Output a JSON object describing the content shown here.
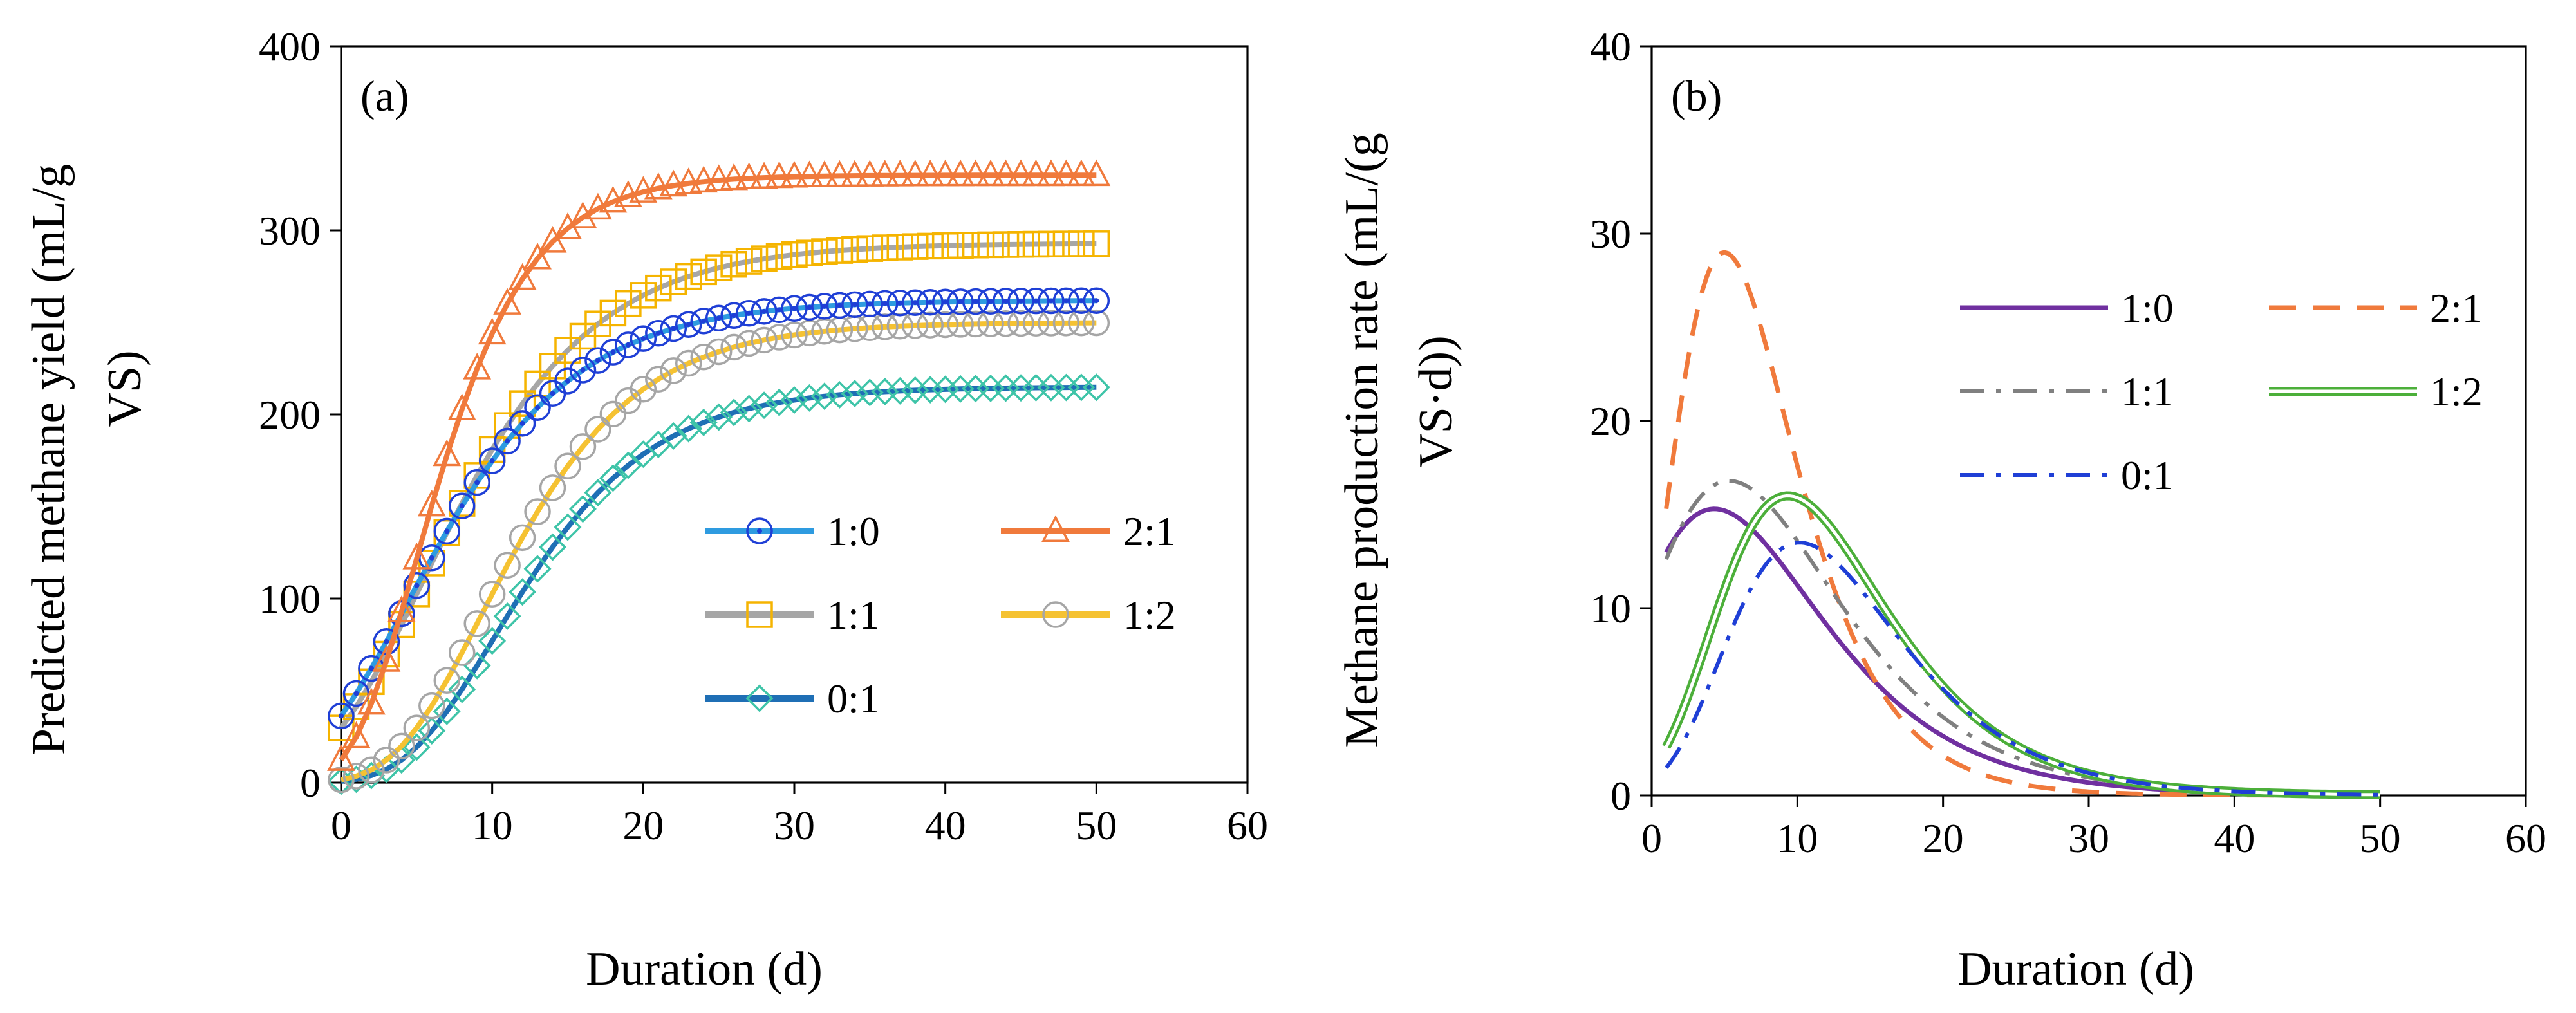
{
  "chart_data": [
    {
      "type": "line",
      "panel_label": "(a)",
      "title": "",
      "xlabel": "Duration (d)",
      "ylabel": "Predicted methane yield (mL/g VS)",
      "ylabel_lines": [
        "Predicted methane yield (mL/g",
        "VS)"
      ],
      "xlim": [
        0,
        60
      ],
      "ylim": [
        0,
        400
      ],
      "xticks": [
        0,
        10,
        20,
        30,
        40,
        50,
        60
      ],
      "yticks": [
        0,
        100,
        200,
        300,
        400
      ],
      "grid": false,
      "legend_position": "lower-right",
      "series": [
        {
          "name": "1:0",
          "color": "#1f3fd6",
          "line_color": "#2e9be0",
          "marker": "circle-dot",
          "model": {
            "P": 262,
            "Rm": 15.3,
            "lambda": -2.0,
            "kind": "gompertz"
          }
        },
        {
          "name": "2:1",
          "color": "#f07a3c",
          "line_color": "#f07a3c",
          "marker": "triangle",
          "model": {
            "P": 330,
            "Rm": 29,
            "lambda": 0.8,
            "kind": "gompertz"
          }
        },
        {
          "name": "1:1",
          "color": "#f5b400",
          "line_color": "#a6a6a6",
          "marker": "square",
          "model": {
            "P": 293,
            "Rm": 16.8,
            "lambda": -1.1,
            "kind": "gompertz"
          }
        },
        {
          "name": "1:2",
          "color": "#a6a6a6",
          "line_color": "#f5c232",
          "marker": "circle",
          "model": {
            "P": 250,
            "Rm": 16.0,
            "lambda": 3.6,
            "kind": "gompertz"
          }
        },
        {
          "name": "0:1",
          "color": "#3ec4a8",
          "line_color": "#1f6fb5",
          "marker": "diamond",
          "model": {
            "P": 215,
            "Rm": 13.5,
            "lambda": 4.3,
            "kind": "gompertz"
          }
        }
      ],
      "x_step": 1,
      "x_range": [
        0,
        50
      ]
    },
    {
      "type": "line",
      "panel_label": "(b)",
      "title": "",
      "xlabel": "Duration (d)",
      "ylabel": "Methane production rate (mL/(g VS·d))",
      "ylabel_lines": [
        "Methane production rate (mL/(g",
        "VS·d))"
      ],
      "xlim": [
        0,
        60
      ],
      "ylim": [
        0,
        40
      ],
      "xticks": [
        0,
        10,
        20,
        30,
        40,
        50,
        60
      ],
      "yticks": [
        0,
        10,
        20,
        30,
        40
      ],
      "grid": false,
      "legend_position": "top-right",
      "series": [
        {
          "name": "1:0",
          "color": "#7030a0",
          "style": "solid",
          "model": {
            "P": 262,
            "Rm": 15.3,
            "lambda": -2.0
          }
        },
        {
          "name": "2:1",
          "color": "#f07a3c",
          "style": "dashed",
          "model": {
            "P": 330,
            "Rm": 29,
            "lambda": 0.8
          }
        },
        {
          "name": "1:1",
          "color": "#808080",
          "style": "dash-dot",
          "model": {
            "P": 293,
            "Rm": 16.8,
            "lambda": -1.1
          }
        },
        {
          "name": "1:2",
          "color": "#4caf3a",
          "style": "double",
          "model": {
            "P": 250,
            "Rm": 16.0,
            "lambda": 3.6
          }
        },
        {
          "name": "0:1",
          "color": "#1f3fd6",
          "style": "dash-dot",
          "model": {
            "P": 215,
            "Rm": 13.5,
            "lambda": 4.3
          }
        }
      ],
      "x_range": [
        1,
        50
      ]
    }
  ]
}
